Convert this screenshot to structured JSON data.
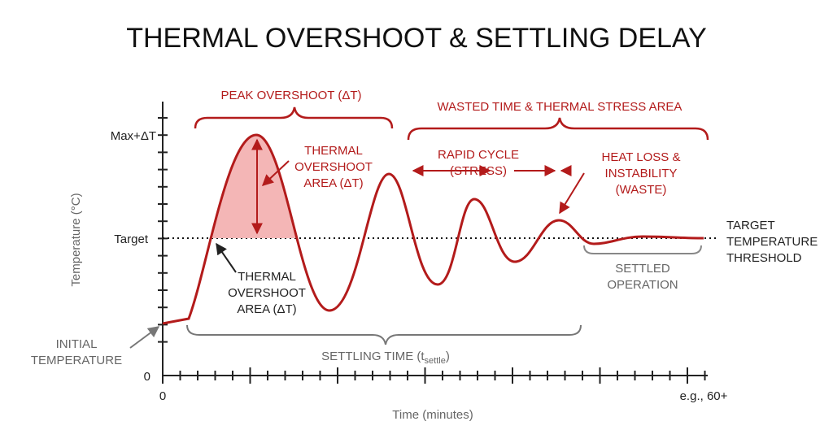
{
  "title": "THERMAL OVERSHOOT & SETTLING DELAY",
  "axes": {
    "y_label": "Temperature (°C)",
    "y_ticks": [
      "Max+ΔT",
      "Target",
      "0"
    ],
    "x_start": "0",
    "x_end": "e.g., 60+",
    "x_label": "Time (minutes)"
  },
  "annotations": {
    "peak_overshoot": "PEAK OVERSHOOT (ΔT)",
    "wasted_time": "WASTED TIME & THERMAL STRESS AREA",
    "overshoot_area_top": [
      "THERMAL",
      "OVERSHOOT",
      "AREA (ΔT)"
    ],
    "rapid_cycle": [
      "RAPID CYCLE",
      "(STRESS)"
    ],
    "heat_loss": [
      "HEAT LOSS &",
      "INSTABILITY",
      "(WASTE)"
    ],
    "overshoot_area_bottom": [
      "THERMAL",
      "OVERSHOOT",
      "AREA (ΔT)"
    ],
    "initial_temperature": [
      "INITIAL",
      "TEMPERATURE"
    ],
    "target_threshold": [
      "TARGET",
      "TEMPERATURE",
      "THRESHOLD"
    ],
    "settled_operation": [
      "SETTLED",
      "OPERATION"
    ],
    "settling_time": {
      "text": "SETTLING TIME (t",
      "subscript": "settle",
      "close": ")"
    }
  }
}
